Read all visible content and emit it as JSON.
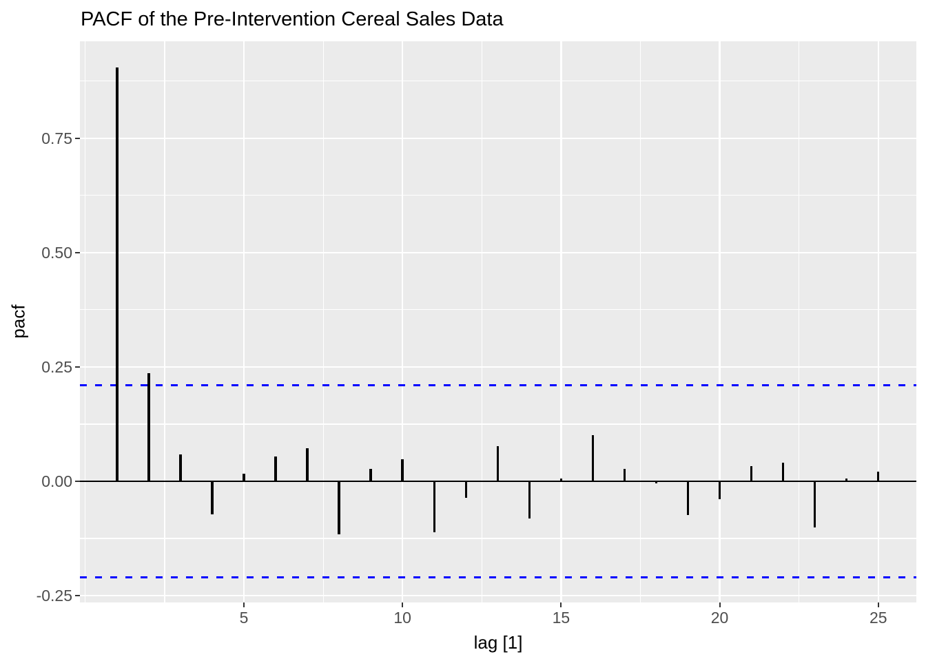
{
  "page": {
    "title": "PACF of the Pre-Intervention Cereal Sales Data"
  },
  "chart_data": {
    "type": "bar",
    "subtype": "pacf-lollipop",
    "title": "PACF of the Pre-Intervention Cereal Sales Data",
    "xlabel": "lag [1]",
    "ylabel": "pacf",
    "x": [
      1,
      2,
      3,
      4,
      5,
      6,
      7,
      8,
      9,
      10,
      11,
      12,
      13,
      14,
      15,
      16,
      17,
      18,
      19,
      20,
      21,
      22,
      23,
      24,
      25
    ],
    "values": [
      0.905,
      0.237,
      0.059,
      -0.072,
      0.017,
      0.054,
      0.072,
      -0.116,
      0.027,
      0.048,
      -0.111,
      -0.036,
      0.077,
      -0.081,
      0.006,
      0.101,
      0.027,
      -0.005,
      -0.074,
      -0.039,
      0.033,
      0.041,
      -0.101,
      0.006,
      0.021
    ],
    "confidence_bounds": {
      "upper": 0.21,
      "lower": -0.21,
      "style": "dashed"
    },
    "zero_line": 0,
    "xlim": [
      -0.17,
      26.2
    ],
    "ylim": [
      -0.265,
      0.962
    ],
    "x_tick_values": [
      5,
      10,
      15,
      20,
      25
    ],
    "x_tick_labels": [
      "5",
      "10",
      "15",
      "20",
      "25"
    ],
    "y_tick_values": [
      0.75,
      0.5,
      0.25,
      0.0,
      -0.25
    ],
    "y_tick_labels": [
      "0.75",
      "0.50",
      "0.25",
      "0.00",
      "-0.25"
    ],
    "x_minor_gridlines": [
      0,
      2.5,
      7.5,
      12.5,
      17.5,
      22.5
    ],
    "y_minor_gridlines": [
      0.875,
      0.625,
      0.375,
      0.125,
      -0.125
    ],
    "grid": "on",
    "legend": "none",
    "colors": {
      "panel_background": "#EBEBEB",
      "gridline": "#FFFFFF",
      "bar": "#000000",
      "zero_line": "#000000",
      "confidence_line": "#0000FF",
      "tick_mark": "#333333",
      "tick_label": "#4D4D4D",
      "title": "#000000"
    }
  }
}
